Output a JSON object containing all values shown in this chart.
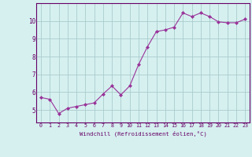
{
  "x": [
    0,
    1,
    2,
    3,
    4,
    5,
    6,
    7,
    8,
    9,
    10,
    11,
    12,
    13,
    14,
    15,
    16,
    17,
    18,
    19,
    20,
    21,
    22,
    23
  ],
  "y": [
    5.7,
    5.6,
    4.8,
    5.1,
    5.2,
    5.3,
    5.4,
    5.9,
    6.35,
    5.85,
    6.35,
    7.55,
    8.55,
    9.4,
    9.5,
    9.65,
    10.45,
    10.25,
    10.45,
    10.25,
    9.95,
    9.9,
    9.9,
    10.1
  ],
  "line_color": "#993399",
  "marker": "D",
  "marker_size": 2,
  "bg_color": "#d6f0f0",
  "grid_color": "#aacccc",
  "xlabel": "Windchill (Refroidissement éolien,°C)",
  "xlabel_color": "#660066",
  "tick_color": "#660066",
  "xlim": [
    -0.5,
    23.5
  ],
  "ylim": [
    4.3,
    11.0
  ],
  "yticks": [
    5,
    6,
    7,
    8,
    9,
    10
  ],
  "xticks": [
    0,
    1,
    2,
    3,
    4,
    5,
    6,
    7,
    8,
    9,
    10,
    11,
    12,
    13,
    14,
    15,
    16,
    17,
    18,
    19,
    20,
    21,
    22,
    23
  ],
  "spine_color": "#660066",
  "bg_color_fig": "#d6f0f0"
}
